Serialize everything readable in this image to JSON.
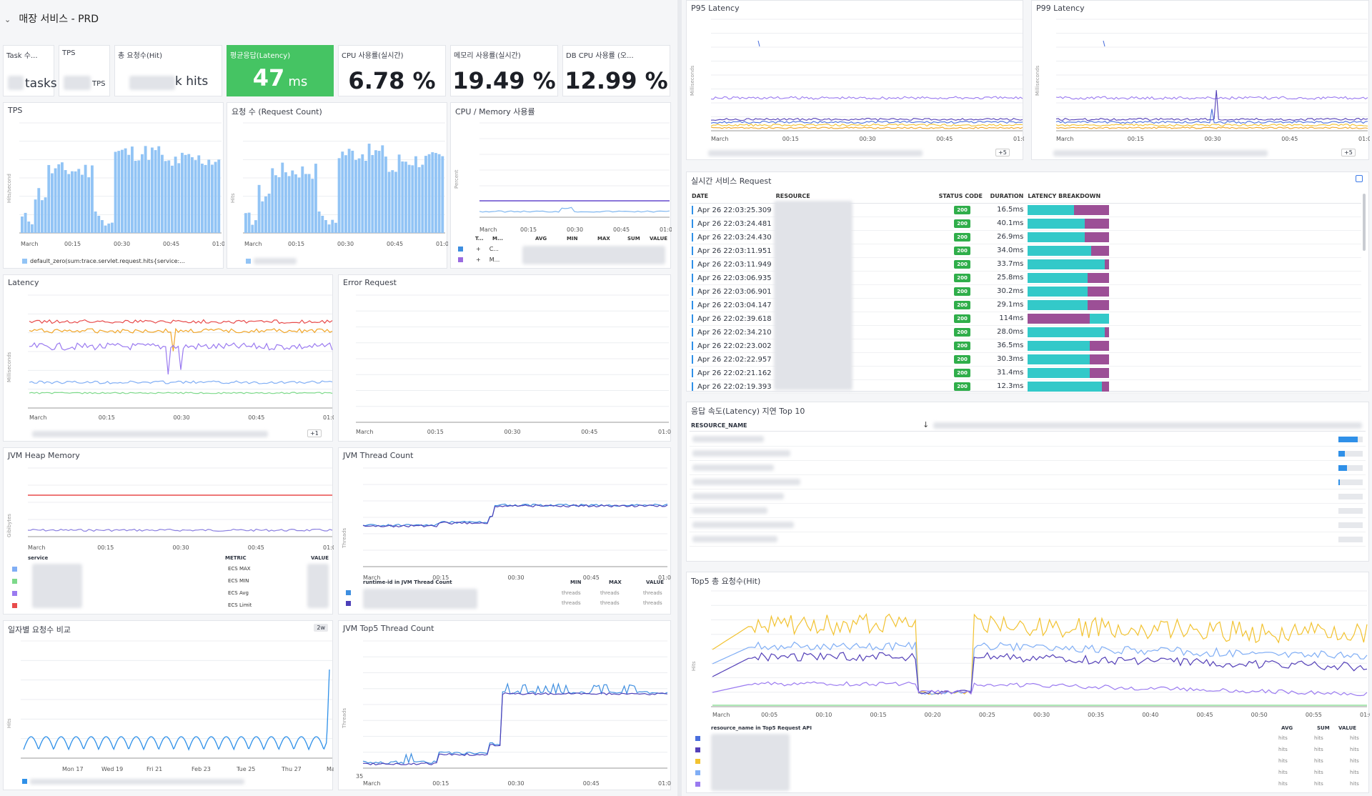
{
  "header": {
    "title": "매장 서비스 - PRD",
    "chevron_icon": "chevron-down-icon"
  },
  "colors": {
    "green": "#45c463",
    "teal": "#33c9c9",
    "purple": "#9c4f96",
    "blue_bar": "#92c4f5",
    "red": "#e84b4b",
    "orange": "#f0a528",
    "violet": "#9a7af0",
    "lightblue": "#80aef5",
    "lightgreen": "#7dd98a",
    "darkblue": "#4a6fdd",
    "indigo": "#5440b8",
    "yellow": "#f2c230"
  },
  "qv": {
    "tasks": {
      "label": "Task 수...",
      "unit": "tasks"
    },
    "tps": {
      "label": "TPS",
      "unit": "TPS"
    },
    "hits": {
      "label": "총 요청수(Hit)",
      "unit": "k hits"
    },
    "latency": {
      "label": "평균응답(Latency)",
      "value": "47",
      "unit": "ms"
    },
    "cpu": {
      "label": "CPU 사용률(실시간)",
      "value": "6.78 %"
    },
    "mem": {
      "label": "메모리 사용률(실시간)",
      "value": "19.49 %"
    },
    "dbcpu": {
      "label": "DB CPU 사용률 (오...",
      "value": "12.99 %"
    }
  },
  "panels": {
    "tps": {
      "title": "TPS",
      "ylabel": "Hits/second",
      "legend": "default_zero(sum:trace.servlet.request.hits{service:..."
    },
    "req": {
      "title": "요청 수 (Request Count)",
      "ylabel": "Hits"
    },
    "cpumem": {
      "title": "CPU / Memory 사용률",
      "ylabel": "Percent",
      "cols": [
        "T...",
        "M...",
        "AVG",
        "MIN",
        "MAX",
        "SUM",
        "VALUE"
      ],
      "rows": [
        "C...",
        "M..."
      ]
    },
    "latency": {
      "title": "Latency",
      "ylabel": "Milliseconds",
      "more": "+1"
    },
    "error": {
      "title": "Error Request"
    },
    "heap": {
      "title": "JVM Heap Memory",
      "ylabel": "Gibibytes",
      "col_service": "service",
      "col_metric": "METRIC",
      "col_value": "VALUE",
      "metrics": [
        "ECS MAX",
        "ECS MIN",
        "ECS Avg",
        "ECS Limit"
      ]
    },
    "thread": {
      "title": "JVM Thread Count",
      "ylabel": "Threads",
      "legend_title": "runtime-id in JVM Thread Count",
      "cols": [
        "MIN",
        "MAX",
        "VALUE"
      ],
      "unit": "threads"
    },
    "daily": {
      "title": "일자별 요청수 비교",
      "badge": "2w",
      "ylabel": "Hits",
      "xticks": [
        "Mon 17",
        "Wed 19",
        "Fri 21",
        "Feb 23",
        "Tue 25",
        "Thu 27",
        "Mar"
      ]
    },
    "top5thread": {
      "title": "JVM Top5 Thread Count",
      "ylabel": "Threads",
      "ymin_label": "35"
    },
    "p95": {
      "title": "P95 Latency",
      "ylabel": "Milliseconds",
      "more": "+5"
    },
    "p99": {
      "title": "P99 Latency",
      "ylabel": "Milliseconds",
      "more": "+5"
    },
    "realtime": {
      "title": "실시간 서비스 Request",
      "cols": [
        "DATE",
        "RESOURCE",
        "STATUS CODE",
        "DURATION",
        "LATENCY BREAKDOWN"
      ],
      "rows": [
        {
          "date": "Apr 26 22:03:25.309",
          "code": "200",
          "dur": "16.5ms",
          "t": 57,
          "p": 43
        },
        {
          "date": "Apr 26 22:03:24.481",
          "code": "200",
          "dur": "40.1ms",
          "t": 70,
          "p": 30
        },
        {
          "date": "Apr 26 22:03:24.430",
          "code": "200",
          "dur": "26.9ms",
          "t": 70,
          "p": 30
        },
        {
          "date": "Apr 26 22:03:11.951",
          "code": "200",
          "dur": "34.0ms",
          "t": 78,
          "p": 22
        },
        {
          "date": "Apr 26 22:03:11.949",
          "code": "200",
          "dur": "33.7ms",
          "t": 94,
          "p": 6
        },
        {
          "date": "Apr 26 22:03:06.935",
          "code": "200",
          "dur": "25.8ms",
          "t": 73,
          "p": 27
        },
        {
          "date": "Apr 26 22:03:06.901",
          "code": "200",
          "dur": "30.2ms",
          "t": 73,
          "p": 27
        },
        {
          "date": "Apr 26 22:03:04.147",
          "code": "200",
          "dur": "29.1ms",
          "t": 73,
          "p": 27
        },
        {
          "date": "Apr 26 22:02:39.618",
          "code": "200",
          "dur": "114ms",
          "t": 24,
          "p": 76,
          "rev": true
        },
        {
          "date": "Apr 26 22:02:34.210",
          "code": "200",
          "dur": "28.0ms",
          "t": 94,
          "p": 6
        },
        {
          "date": "Apr 26 22:02:23.002",
          "code": "200",
          "dur": "36.5ms",
          "t": 76,
          "p": 24
        },
        {
          "date": "Apr 26 22:02:22.957",
          "code": "200",
          "dur": "30.3ms",
          "t": 76,
          "p": 24
        },
        {
          "date": "Apr 26 22:02:21.162",
          "code": "200",
          "dur": "31.4ms",
          "t": 76,
          "p": 24
        },
        {
          "date": "Apr 26 22:02:19.393",
          "code": "200",
          "dur": "12.3ms",
          "t": 91,
          "p": 9
        }
      ]
    },
    "top10": {
      "title": "응답 속도(Latency) 지연 Top 10",
      "col": "RESOURCE_NAME",
      "bars": [
        80,
        25,
        35,
        5,
        0,
        0,
        0,
        0
      ]
    },
    "top5hit": {
      "title": "Top5 총 요청수(Hit)",
      "ylabel": "Hits",
      "legend_title": "resource_name in Top5 Request API",
      "cols": [
        "AVG",
        "SUM",
        "VALUE"
      ],
      "unit": "hits",
      "xticks": [
        "March",
        "00:05",
        "00:10",
        "00:15",
        "00:20",
        "00:25",
        "00:30",
        "00:35",
        "00:40",
        "00:45",
        "00:50",
        "00:55",
        "01:0"
      ]
    }
  },
  "xticks_short": [
    "March",
    "00:15",
    "00:30",
    "00:45",
    "01:0"
  ]
}
